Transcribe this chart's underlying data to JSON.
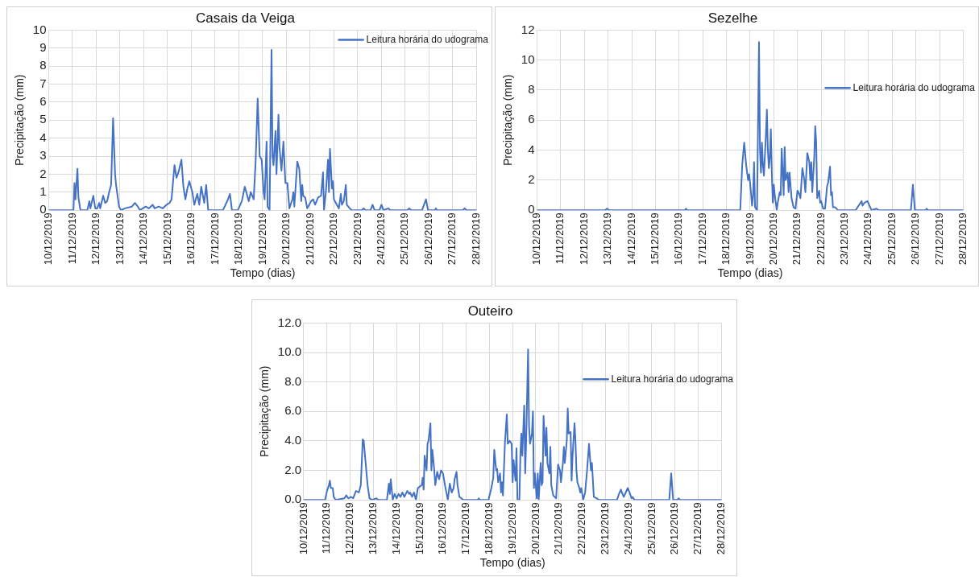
{
  "chart_data": [
    {
      "type": "line",
      "title": "Casais da Veiga",
      "xlabel": "Tempo (dias)",
      "ylabel": "Precipitação (mm)",
      "grid": true,
      "legend": "top right",
      "xlim": [
        "2019-12-10",
        "2019-12-28"
      ],
      "xticks": [
        {
          "value": "2019-12-10",
          "label": "10/12/2019"
        },
        {
          "value": "2019-12-11",
          "label": "11/12/2019"
        },
        {
          "value": "2019-12-12",
          "label": "12/12/2019"
        },
        {
          "value": "2019-12-13",
          "label": "13/12/2019"
        },
        {
          "value": "2019-12-14",
          "label": "14/12/2019"
        },
        {
          "value": "2019-12-15",
          "label": "15/12/2019"
        },
        {
          "value": "2019-12-16",
          "label": "16/12/2019"
        },
        {
          "value": "2019-12-17",
          "label": "17/12/2019"
        },
        {
          "value": "2019-12-18",
          "label": "18/12/2019"
        },
        {
          "value": "2019-12-19",
          "label": "19/12/2019"
        },
        {
          "value": "2019-12-20",
          "label": "20/12/2019"
        },
        {
          "value": "2019-12-21",
          "label": "21/12/2019"
        },
        {
          "value": "2019-12-22",
          "label": "22/12/2019"
        },
        {
          "value": "2019-12-23",
          "label": "23/12/2019"
        },
        {
          "value": "2019-12-24",
          "label": "24/12/2019"
        },
        {
          "value": "2019-12-25",
          "label": "25/12/2019"
        },
        {
          "value": "2019-12-26",
          "label": "26/12/2019"
        },
        {
          "value": "2019-12-27",
          "label": "27/12/2019"
        },
        {
          "value": "2019-12-28",
          "label": "28/12/2019"
        }
      ],
      "ylim": [
        0,
        10
      ],
      "yticks": [
        0,
        1,
        2,
        3,
        4,
        5,
        6,
        7,
        8,
        9,
        10
      ],
      "x": [
        "2019-12-10T00:00",
        "2019-12-11T01:00",
        "2019-12-11T02:00",
        "2019-12-11T03:00",
        "2019-12-11T05:00",
        "2019-12-11T06:00",
        "2019-12-11T08:00",
        "2019-12-11T15:00",
        "2019-12-11T17:00",
        "2019-12-11T18:00",
        "2019-12-11T21:00",
        "2019-12-11T23:00",
        "2019-12-12T01:00",
        "2019-12-12T03:00",
        "2019-12-12T04:00",
        "2019-12-12T07:00",
        "2019-12-12T09:00",
        "2019-12-12T11:00",
        "2019-12-12T13:00",
        "2019-12-12T15:00",
        "2019-12-12T17:00",
        "2019-12-12T19:00",
        "2019-12-12T20:00",
        "2019-12-12T23:00",
        "2019-12-13T01:00",
        "2019-12-13T05:00",
        "2019-12-13T12:00",
        "2019-12-13T15:00",
        "2019-12-13T18:00",
        "2019-12-13T20:00",
        "2019-12-14T02:00",
        "2019-12-14T05:00",
        "2019-12-14T09:00",
        "2019-12-14T11:00",
        "2019-12-14T15:00",
        "2019-12-14T19:00",
        "2019-12-14T23:00",
        "2019-12-15T02:00",
        "2019-12-15T04:00",
        "2019-12-15T07:00",
        "2019-12-15T09:00",
        "2019-12-15T11:00",
        "2019-12-15T14:00",
        "2019-12-15T16:00",
        "2019-12-15T18:00",
        "2019-12-15T20:00",
        "2019-12-15T22:00",
        "2019-12-16T01:00",
        "2019-12-16T03:00",
        "2019-12-16T06:00",
        "2019-12-16T08:00",
        "2019-12-16T10:00",
        "2019-12-16T13:00",
        "2019-12-16T15:00",
        "2019-12-16T17:00",
        "2019-12-17T08:00",
        "2019-12-17T13:00",
        "2019-12-17T15:00",
        "2019-12-17T17:00",
        "2019-12-17T23:00",
        "2019-12-18T03:00",
        "2019-12-18T06:00",
        "2019-12-18T10:00",
        "2019-12-18T12:00",
        "2019-12-18T15:00",
        "2019-12-18T17:00",
        "2019-12-18T19:00",
        "2019-12-18T21:00",
        "2019-12-18T23:00",
        "2019-12-19T01:00",
        "2019-12-19T02:00",
        "2019-12-19T04:00",
        "2019-12-19T05:00",
        "2019-12-19T07:00",
        "2019-12-19T09:00",
        "2019-12-19T10:00",
        "2019-12-19T11:00",
        "2019-12-19T13:00",
        "2019-12-19T14:00",
        "2019-12-19T16:00",
        "2019-12-19T17:00",
        "2019-12-19T19:00",
        "2019-12-19T21:00",
        "2019-12-19T23:00",
        "2019-12-20T01:00",
        "2019-12-20T03:00",
        "2019-12-20T06:00",
        "2019-12-20T07:00",
        "2019-12-20T08:00",
        "2019-12-20T11:00",
        "2019-12-20T13:00",
        "2019-12-20T15:00",
        "2019-12-20T16:00",
        "2019-12-20T17:00",
        "2019-12-20T19:00",
        "2019-12-20T21:00",
        "2019-12-21T01:00",
        "2019-12-21T03:00",
        "2019-12-21T05:00",
        "2019-12-21T08:00",
        "2019-12-21T11:00",
        "2019-12-21T13:00",
        "2019-12-21T14:00",
        "2019-12-21T16:00",
        "2019-12-21T18:00",
        "2019-12-21T19:00",
        "2019-12-21T20:00",
        "2019-12-21T22:00",
        "2019-12-21T23:00",
        "2019-12-22T00:00",
        "2019-12-22T03:00",
        "2019-12-22T05:00",
        "2019-12-22T07:00",
        "2019-12-22T08:00",
        "2019-12-22T10:00",
        "2019-12-22T12:00",
        "2019-12-22T13:00",
        "2019-12-22T16:00",
        "2019-12-22T18:00",
        "2019-12-23T04:00",
        "2019-12-23T06:00",
        "2019-12-23T08:00",
        "2019-12-23T13:00",
        "2019-12-23T15:00",
        "2019-12-23T17:00",
        "2019-12-23T22:00",
        "2019-12-24T00:00",
        "2019-12-24T02:00",
        "2019-12-24T07:00",
        "2019-12-24T09:00",
        "2019-12-25T02:00",
        "2019-12-25T04:00",
        "2019-12-25T06:00",
        "2019-12-25T17:00",
        "2019-12-25T19:00",
        "2019-12-25T21:00",
        "2019-12-25T23:00",
        "2019-12-26T06:00",
        "2019-12-26T07:00",
        "2019-12-26T08:00",
        "2019-12-27T10:00",
        "2019-12-27T12:00",
        "2019-12-27T14:00",
        "2019-12-28T00:00"
      ],
      "series": [
        {
          "name": "Leitura horária do udograma",
          "color": "#4472c4",
          "values": [
            0,
            0,
            1.5,
            0.6,
            2.3,
            0.7,
            0,
            0,
            0.5,
            0.1,
            0.8,
            0.1,
            0.1,
            0.4,
            0.1,
            0.8,
            0.4,
            0.5,
            1.0,
            1.4,
            5.1,
            2.0,
            1.4,
            0.2,
            0,
            0.1,
            0.2,
            0.4,
            0.2,
            0,
            0.2,
            0.1,
            0.3,
            0.1,
            0.2,
            0.1,
            0.3,
            0.4,
            0.6,
            2.5,
            1.8,
            2.1,
            2.8,
            1.3,
            0.6,
            1.2,
            1.6,
            1.0,
            0.3,
            0.9,
            0.3,
            1.3,
            0.4,
            1.4,
            0,
            0,
            0.6,
            0.9,
            0,
            0,
            0.5,
            1.3,
            0.5,
            1.0,
            0.6,
            2.8,
            6.2,
            3.0,
            2.8,
            1.0,
            0.6,
            3.8,
            0.2,
            0,
            8.9,
            3.0,
            2.5,
            4.4,
            2.0,
            5.3,
            3.5,
            2.2,
            3.8,
            1.5,
            1.5,
            0.1,
            0.6,
            1.0,
            0.2,
            2.7,
            2.3,
            0.5,
            1.4,
            0.8,
            0.7,
            0.1,
            0.5,
            0.6,
            0.3,
            0.7,
            0.8,
            2.1,
            0,
            1.1,
            2.8,
            1.0,
            3.4,
            1.2,
            1.6,
            0.6,
            0.3,
            0.1,
            0.9,
            0.3,
            0.5,
            1.4,
            0.3,
            0.1,
            0,
            0,
            0.1,
            0,
            0,
            0.3,
            0,
            0,
            0.3,
            0,
            0.1,
            0,
            0,
            0.1,
            0,
            0,
            0.3,
            0.6,
            0,
            0,
            0.1,
            0,
            0,
            0.1,
            0,
            0
          ]
        }
      ]
    },
    {
      "type": "line",
      "title": "Sezelhe",
      "xlabel": "Tempo (dias)",
      "ylabel": "Precipitação (mm)",
      "grid": true,
      "legend": "right",
      "xlim": [
        "2019-12-10",
        "2019-12-28"
      ],
      "xticks": [
        {
          "value": "2019-12-10",
          "label": "10/12/2019"
        },
        {
          "value": "2019-12-11",
          "label": "11/12/2019"
        },
        {
          "value": "2019-12-12",
          "label": "12/12/2019"
        },
        {
          "value": "2019-12-13",
          "label": "13/12/2019"
        },
        {
          "value": "2019-12-14",
          "label": "14/12/2019"
        },
        {
          "value": "2019-12-15",
          "label": "15/12/2019"
        },
        {
          "value": "2019-12-16",
          "label": "16/12/2019"
        },
        {
          "value": "2019-12-17",
          "label": "17/12/2019"
        },
        {
          "value": "2019-12-18",
          "label": "18/12/2019"
        },
        {
          "value": "2019-12-19",
          "label": "19/12/2019"
        },
        {
          "value": "2019-12-20",
          "label": "20/12/2019"
        },
        {
          "value": "2019-12-21",
          "label": "21/12/2019"
        },
        {
          "value": "2019-12-22",
          "label": "22/12/2019"
        },
        {
          "value": "2019-12-23",
          "label": "23/12/2019"
        },
        {
          "value": "2019-12-24",
          "label": "24/12/2019"
        },
        {
          "value": "2019-12-25",
          "label": "25/12/2019"
        },
        {
          "value": "2019-12-26",
          "label": "26/12/2019"
        },
        {
          "value": "2019-12-27",
          "label": "27/12/2019"
        },
        {
          "value": "2019-12-28",
          "label": "28/12/2019"
        }
      ],
      "ylim": [
        0,
        12
      ],
      "yticks": [
        0,
        2,
        4,
        6,
        8,
        10,
        12
      ],
      "x": [
        "2019-12-10T00:00",
        "2019-12-12T21:00",
        "2019-12-12T23:00",
        "2019-12-13T01:00",
        "2019-12-16T06:00",
        "2019-12-16T07:00",
        "2019-12-16T08:00",
        "2019-12-18T14:00",
        "2019-12-18T16:00",
        "2019-12-18T18:00",
        "2019-12-18T20:00",
        "2019-12-18T22:00",
        "2019-12-18T23:00",
        "2019-12-19T00:00",
        "2019-12-19T02:00",
        "2019-12-19T03:00",
        "2019-12-19T04:00",
        "2019-12-19T05:00",
        "2019-12-19T07:00",
        "2019-12-19T09:00",
        "2019-12-19T10:00",
        "2019-12-19T11:00",
        "2019-12-19T12:00",
        "2019-12-19T13:00",
        "2019-12-19T14:00",
        "2019-12-19T16:00",
        "2019-12-19T17:00",
        "2019-12-19T18:00",
        "2019-12-19T19:00",
        "2019-12-19T20:00",
        "2019-12-19T21:00",
        "2019-12-19T22:00",
        "2019-12-19T23:00",
        "2019-12-20T00:00",
        "2019-12-20T01:00",
        "2019-12-20T03:00",
        "2019-12-20T04:00",
        "2019-12-20T06:00",
        "2019-12-20T07:00",
        "2019-12-20T08:00",
        "2019-12-20T10:00",
        "2019-12-20T11:00",
        "2019-12-20T12:00",
        "2019-12-20T14:00",
        "2019-12-20T15:00",
        "2019-12-20T16:00",
        "2019-12-20T18:00",
        "2019-12-20T20:00",
        "2019-12-20T22:00",
        "2019-12-21T00:00",
        "2019-12-21T01:00",
        "2019-12-21T03:00",
        "2019-12-21T05:00",
        "2019-12-21T07:00",
        "2019-12-21T08:00",
        "2019-12-21T10:00",
        "2019-12-21T12:00",
        "2019-12-21T13:00",
        "2019-12-21T14:00",
        "2019-12-21T15:00",
        "2019-12-21T17:00",
        "2019-12-21T18:00",
        "2019-12-21T19:00",
        "2019-12-21T20:00",
        "2019-12-21T22:00",
        "2019-12-21T23:00",
        "2019-12-22T00:00",
        "2019-12-22T02:00",
        "2019-12-22T04:00",
        "2019-12-22T06:00",
        "2019-12-22T07:00",
        "2019-12-22T09:00",
        "2019-12-22T10:00",
        "2019-12-22T11:00",
        "2019-12-22T12:00",
        "2019-12-22T14:00",
        "2019-12-22T17:00",
        "2019-12-23T11:00",
        "2019-12-23T14:00",
        "2019-12-23T17:00",
        "2019-12-23T18:00",
        "2019-12-23T20:00",
        "2019-12-23T23:00",
        "2019-12-24T01:00",
        "2019-12-24T03:00",
        "2019-12-24T08:00",
        "2019-12-24T10:00",
        "2019-12-25T19:00",
        "2019-12-25T21:00",
        "2019-12-25T23:00",
        "2019-12-26T10:00",
        "2019-12-26T11:00",
        "2019-12-26T12:00",
        "2019-12-28T00:00"
      ],
      "series": [
        {
          "name": "Leitura horária do udograma",
          "color": "#4472c4",
          "values": [
            0,
            0,
            0.1,
            0,
            0,
            0.1,
            0,
            0,
            3.0,
            4.5,
            3.0,
            2.0,
            2.4,
            1.8,
            0.3,
            1.0,
            3.2,
            0.2,
            0,
            11.2,
            4.0,
            2.5,
            4.5,
            3.0,
            2.3,
            5.0,
            6.7,
            4.0,
            2.8,
            3.5,
            5.4,
            2.5,
            0.5,
            1.7,
            1.0,
            0,
            0.5,
            1.2,
            1.0,
            4.1,
            1.0,
            4.2,
            2.0,
            2.5,
            1.2,
            2.5,
            0.8,
            0.2,
            0.1,
            1.3,
            1.2,
            0.8,
            2.8,
            2.0,
            1.2,
            3.8,
            3.2,
            2.0,
            3.2,
            1.2,
            3.5,
            5.6,
            4.5,
            0.8,
            1.3,
            0.5,
            0.6,
            0.1,
            0.1,
            1.6,
            1.8,
            2.9,
            1.0,
            1.2,
            0.2,
            0.2,
            0,
            0,
            0.3,
            0.6,
            0.3,
            0.5,
            0.6,
            0.3,
            0,
            0.1,
            0,
            0,
            1.7,
            0,
            0,
            0.1,
            0,
            0
          ]
        }
      ]
    },
    {
      "type": "line",
      "title": "Outeiro",
      "xlabel": "Tempo (dias)",
      "ylabel": "Precipitação (mm)",
      "grid": true,
      "legend": "right",
      "xlim": [
        "2019-12-10",
        "2019-12-28"
      ],
      "xticks": [
        {
          "value": "2019-12-10",
          "label": "10/12/2019"
        },
        {
          "value": "2019-12-11",
          "label": "11/12/2019"
        },
        {
          "value": "2019-12-12",
          "label": "12/12/2019"
        },
        {
          "value": "2019-12-13",
          "label": "13/12/2019"
        },
        {
          "value": "2019-12-14",
          "label": "14/12/2019"
        },
        {
          "value": "2019-12-15",
          "label": "15/12/2019"
        },
        {
          "value": "2019-12-16",
          "label": "16/12/2019"
        },
        {
          "value": "2019-12-17",
          "label": "17/12/2019"
        },
        {
          "value": "2019-12-18",
          "label": "18/12/2019"
        },
        {
          "value": "2019-12-19",
          "label": "19/12/2019"
        },
        {
          "value": "2019-12-20",
          "label": "20/12/2019"
        },
        {
          "value": "2019-12-21",
          "label": "21/12/2019"
        },
        {
          "value": "2019-12-22",
          "label": "22/12/2019"
        },
        {
          "value": "2019-12-23",
          "label": "23/12/2019"
        },
        {
          "value": "2019-12-24",
          "label": "24/12/2019"
        },
        {
          "value": "2019-12-25",
          "label": "25/12/2019"
        },
        {
          "value": "2019-12-26",
          "label": "26/12/2019"
        },
        {
          "value": "2019-12-27",
          "label": "27/12/2019"
        },
        {
          "value": "2019-12-28",
          "label": "28/12/2019"
        }
      ],
      "ylim": [
        0,
        12
      ],
      "yticks": [
        {
          "value": 0,
          "label": "0.0"
        },
        {
          "value": 2,
          "label": "2.0"
        },
        {
          "value": 4,
          "label": "4.0"
        },
        {
          "value": 6,
          "label": "6.0"
        },
        {
          "value": 8,
          "label": "8.0"
        },
        {
          "value": 10,
          "label": "10.0"
        },
        {
          "value": 12,
          "label": "12.0"
        }
      ],
      "x": [
        "2019-12-10T00:00",
        "2019-12-10T22:00",
        "2019-12-11T00:00",
        "2019-12-11T02:00",
        "2019-12-11T03:00",
        "2019-12-11T04:00",
        "2019-12-11T06:00",
        "2019-12-11T07:00",
        "2019-12-11T09:00",
        "2019-12-11T18:00",
        "2019-12-11T20:00",
        "2019-12-11T22:00",
        "2019-12-12T01:00",
        "2019-12-12T03:00",
        "2019-12-12T06:00",
        "2019-12-12T09:00",
        "2019-12-12T11:00",
        "2019-12-12T13:00",
        "2019-12-12T14:00",
        "2019-12-12T16:00",
        "2019-12-12T18:00",
        "2019-12-12T20:00",
        "2019-12-12T23:00",
        "2019-12-13T03:00",
        "2019-12-13T05:00",
        "2019-12-13T14:00",
        "2019-12-13T16:00",
        "2019-12-13T17:00",
        "2019-12-13T18:00",
        "2019-12-13T20:00",
        "2019-12-13T22:00",
        "2019-12-14T00:00",
        "2019-12-14T02:00",
        "2019-12-14T04:00",
        "2019-12-14T06:00",
        "2019-12-14T08:00",
        "2019-12-14T11:00",
        "2019-12-14T13:00",
        "2019-12-14T14:00",
        "2019-12-14T16:00",
        "2019-12-14T18:00",
        "2019-12-14T20:00",
        "2019-12-14T22:00",
        "2019-12-15T00:00",
        "2019-12-15T02:00",
        "2019-12-15T03:00",
        "2019-12-15T04:00",
        "2019-12-15T05:00",
        "2019-12-15T07:00",
        "2019-12-15T08:00",
        "2019-12-15T09:00",
        "2019-12-15T11:00",
        "2019-12-15T12:00",
        "2019-12-15T13:00",
        "2019-12-15T15:00",
        "2019-12-15T16:00",
        "2019-12-15T18:00",
        "2019-12-15T20:00",
        "2019-12-15T22:00",
        "2019-12-16T00:00",
        "2019-12-16T02:00",
        "2019-12-16T05:00",
        "2019-12-16T07:00",
        "2019-12-16T09:00",
        "2019-12-16T11:00",
        "2019-12-16T12:00",
        "2019-12-16T14:00",
        "2019-12-16T15:00",
        "2019-12-16T17:00",
        "2019-12-16T21:00",
        "2019-12-17T12:00",
        "2019-12-17T13:00",
        "2019-12-17T14:00",
        "2019-12-17T23:00",
        "2019-12-18T02:00",
        "2019-12-18T04:00",
        "2019-12-18T05:00",
        "2019-12-18T07:00",
        "2019-12-18T08:00",
        "2019-12-18T09:00",
        "2019-12-18T11:00",
        "2019-12-18T12:00",
        "2019-12-18T13:00",
        "2019-12-18T14:00",
        "2019-12-18T16:00",
        "2019-12-18T18:00",
        "2019-12-18T19:00",
        "2019-12-18T21:00",
        "2019-12-18T23:00",
        "2019-12-19T00:00",
        "2019-12-19T01:00",
        "2019-12-19T03:00",
        "2019-12-19T04:00",
        "2019-12-19T05:00",
        "2019-12-19T07:00",
        "2019-12-19T08:00",
        "2019-12-19T09:00",
        "2019-12-19T10:00",
        "2019-12-19T12:00",
        "2019-12-19T13:00",
        "2019-12-19T14:00",
        "2019-12-19T16:00",
        "2019-12-19T17:00",
        "2019-12-19T18:00",
        "2019-12-19T20:00",
        "2019-12-19T21:00",
        "2019-12-19T22:00",
        "2019-12-19T23:00",
        "2019-12-20T01:00",
        "2019-12-20T02:00",
        "2019-12-20T03:00",
        "2019-12-20T05:00",
        "2019-12-20T06:00",
        "2019-12-20T07:00",
        "2019-12-20T08:00",
        "2019-12-20T10:00",
        "2019-12-20T11:00",
        "2019-12-20T12:00",
        "2019-12-20T14:00",
        "2019-12-20T15:00",
        "2019-12-20T16:00",
        "2019-12-20T18:00",
        "2019-12-20T21:00",
        "2019-12-20T23:00",
        "2019-12-21T01:00",
        "2019-12-21T02:00",
        "2019-12-21T04:00",
        "2019-12-21T05:00",
        "2019-12-21T06:00",
        "2019-12-21T08:00",
        "2019-12-21T09:00",
        "2019-12-21T10:00",
        "2019-12-21T12:00",
        "2019-12-21T13:00",
        "2019-12-21T14:00",
        "2019-12-21T16:00",
        "2019-12-21T17:00",
        "2019-12-21T18:00",
        "2019-12-21T19:00",
        "2019-12-21T21:00",
        "2019-12-21T22:00",
        "2019-12-21T23:00",
        "2019-12-22T01:00",
        "2019-12-22T03:00",
        "2019-12-22T05:00",
        "2019-12-22T07:00",
        "2019-12-22T09:00",
        "2019-12-22T10:00",
        "2019-12-22T12:00",
        "2019-12-22T15:00",
        "2019-12-22T17:00",
        "2019-12-23T12:00",
        "2019-12-23T14:00",
        "2019-12-23T16:00",
        "2019-12-23T17:00",
        "2019-12-23T19:00",
        "2019-12-23T21:00",
        "2019-12-23T23:00",
        "2019-12-24T01:00",
        "2019-12-24T03:00",
        "2019-12-24T04:00",
        "2019-12-24T06:00",
        "2019-12-25T18:00",
        "2019-12-25T20:00",
        "2019-12-25T22:00",
        "2019-12-26T02:00",
        "2019-12-26T04:00",
        "2019-12-26T05:00",
        "2019-12-28T00:00"
      ],
      "series": [
        {
          "name": "Leitura horária do udograma",
          "color": "#4472c4",
          "values": [
            0,
            0,
            0.6,
            1.0,
            1.3,
            0.8,
            0.8,
            0.2,
            0,
            0.1,
            0.3,
            0.1,
            0.2,
            0.1,
            0.6,
            0.5,
            1.0,
            4.1,
            4.0,
            2.5,
            1.0,
            0.1,
            0,
            0.1,
            0,
            0,
            1.1,
            0.4,
            1.4,
            0,
            0.4,
            0.1,
            0.4,
            0.2,
            0.5,
            0.2,
            0.6,
            0.4,
            0.5,
            0.2,
            0.5,
            0,
            0.8,
            0.9,
            1.0,
            1.5,
            0.7,
            3.0,
            2.0,
            3.8,
            4.0,
            5.2,
            2.0,
            3.4,
            2.0,
            1.0,
            1.9,
            1.4,
            2.0,
            1.8,
            1.0,
            0,
            1.1,
            0.5,
            0.8,
            1.4,
            1.9,
            1.0,
            0.2,
            0,
            0,
            0.1,
            0,
            0,
            0.8,
            1.5,
            3.4,
            2.0,
            2.1,
            1.2,
            1.8,
            0.5,
            1.2,
            0.3,
            3.8,
            5.8,
            3.8,
            4.0,
            3.8,
            1.2,
            2.7,
            1.3,
            3.5,
            0,
            0,
            3.0,
            4.5,
            3.0,
            6.4,
            1.8,
            4.0,
            10.2,
            5.0,
            3.8,
            4.5,
            6.0,
            0.8,
            1.8,
            0.1,
            1.8,
            0,
            2.5,
            1.0,
            1.2,
            5.7,
            3.0,
            4.9,
            2.5,
            1.8,
            3.6,
            1.0,
            0.3,
            0.1,
            2.4,
            2.0,
            1.2,
            2.5,
            3.6,
            2.5,
            4.0,
            6.2,
            4.5,
            4.6,
            1.3,
            3.0,
            5.2,
            4.0,
            2.0,
            1.2,
            0.8,
            0.5,
            0.8,
            0,
            0.5,
            2.0,
            3.8,
            2.0,
            2.5,
            0.2,
            0.1,
            0,
            0,
            0.4,
            0.7,
            0.5,
            0.2,
            0.5,
            0.8,
            0.5,
            0.1,
            0.2,
            0,
            0,
            1.8,
            0,
            0,
            0.1,
            0,
            0
          ]
        }
      ]
    }
  ]
}
